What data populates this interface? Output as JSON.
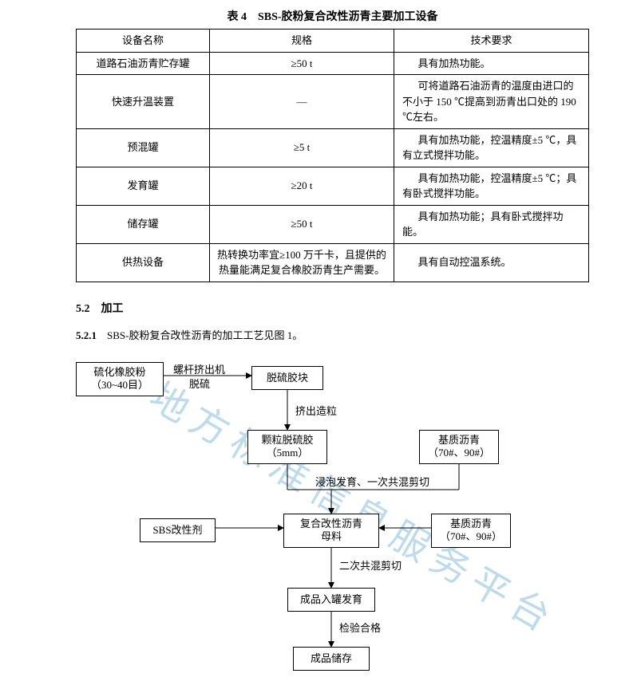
{
  "table": {
    "title": "表 4　SBS-胶粉复合改性沥青主要加工设备",
    "headers": [
      "设备名称",
      "规格",
      "技术要求"
    ],
    "col_widths": [
      "26%",
      "36%",
      "38%"
    ],
    "rows": [
      [
        "道路石油沥青贮存罐",
        "≥50 t",
        "具有加热功能。"
      ],
      [
        "快速升温装置",
        "—",
        "可将道路石油沥青的温度由进口的不小于 150 ℃提高到沥青出口处的 190 ℃左右。"
      ],
      [
        "预混罐",
        "≥5 t",
        "具有加热功能，控温精度±5 ℃，具有立式搅拌功能。"
      ],
      [
        "发育罐",
        "≥20 t",
        "具有加热功能，控温精度±5 ℃；具有卧式搅拌功能。"
      ],
      [
        "储存罐",
        "≥50 t",
        "具有加热功能；具有卧式搅拌功能。"
      ],
      [
        "供热设备",
        "热转换功率宜≥100 万千卡，且提供的热量能满足复合橡胶沥青生产需要。",
        "具有自动控温系统。"
      ]
    ]
  },
  "section52": "5.2　加工",
  "para521": "5.2.1　SBS-胶粉复合改性沥青的加工工艺见图 1。",
  "flow": {
    "nodes": {
      "n1": {
        "l1": "硫化橡胶粉",
        "l2": "（30~40目）"
      },
      "n2": {
        "l1": "脱硫胶块"
      },
      "n3": {
        "l1": "颗粒脱硫胶",
        "l2": "（5mm）"
      },
      "n4": {
        "l1": "基质沥青",
        "l2": "（70#、90#）"
      },
      "n5": {
        "l1": "SBS改性剂"
      },
      "n6": {
        "l1": "复合改性沥青",
        "l2": "母料"
      },
      "n7": {
        "l1": "基质沥青",
        "l2": "（70#、90#）"
      },
      "n8": {
        "l1": "成品入罐发育"
      },
      "n9": {
        "l1": "成品储存"
      }
    },
    "labels": {
      "e1a": "螺杆挤出机",
      "e1b": "脱硫",
      "e2": "挤出造粒",
      "e3": "浸泡发育、一次共混剪切",
      "e4": "二次共混剪切",
      "e5": "检验合格"
    }
  },
  "watermark": "地方标准信息服务平台",
  "colors": {
    "text": "#000000",
    "border": "#000000",
    "watermark": "#a3cde3",
    "bg": "#ffffff"
  }
}
